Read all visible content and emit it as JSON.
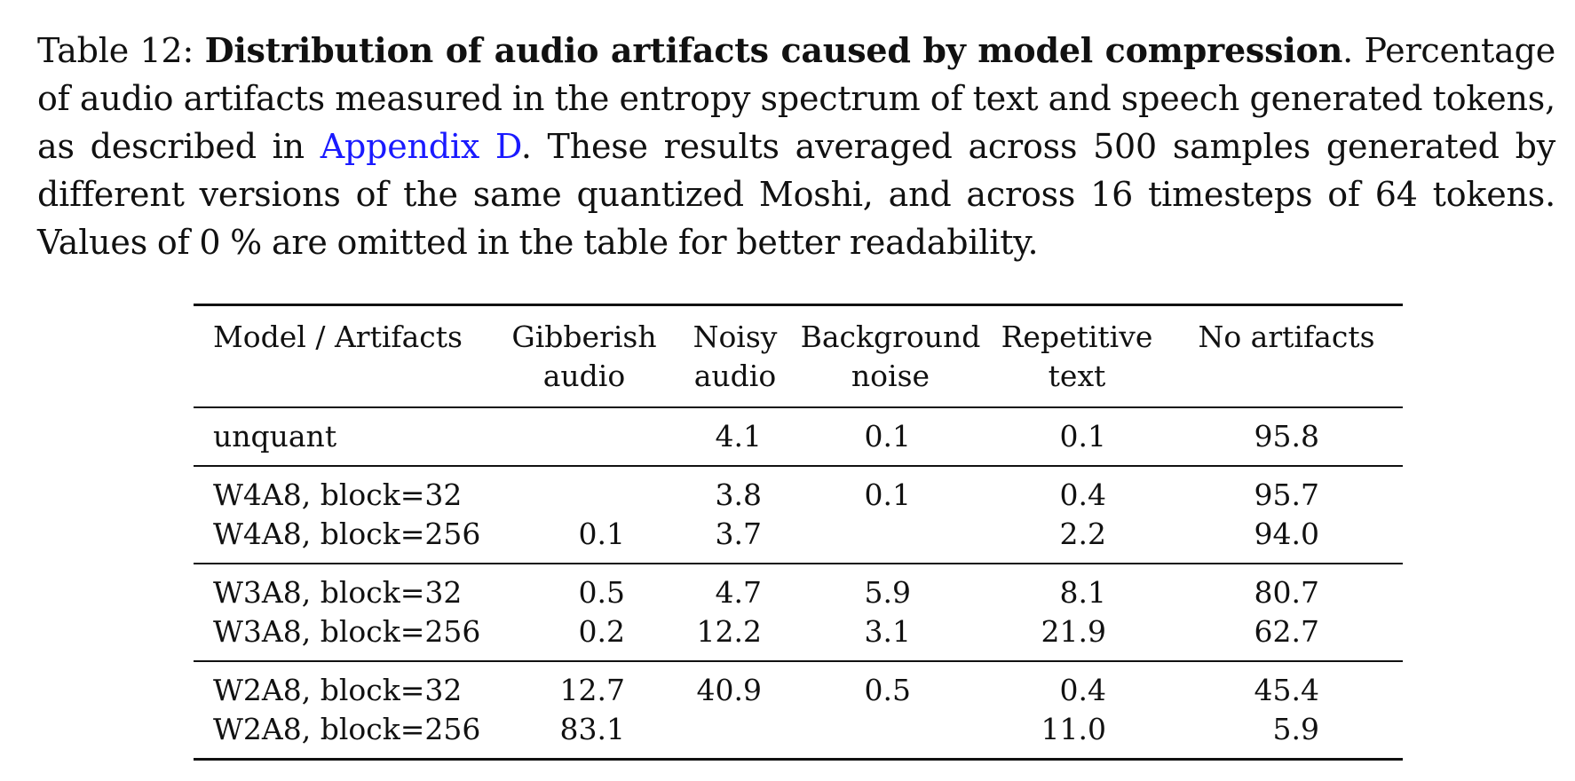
{
  "caption": {
    "label": "Table 12:",
    "title": "Distribution of audio artifacts caused by model compression",
    "text_1": ". Percentage of audio artifacts measured in the entropy spectrum of text and speech generated tokens, as described in ",
    "link": "Appendix D",
    "text_2": ". These results averaged across 500 samples generated by different versions of the same quantized Moshi, and across 16 timesteps of 64 tokens. Values of 0 % are omitted in the table for better readability."
  },
  "table": {
    "headers": [
      [
        "Model / Artifacts",
        ""
      ],
      [
        "Gibberish",
        "audio"
      ],
      [
        "Noisy",
        "audio"
      ],
      [
        "Background",
        "noise"
      ],
      [
        "Repetitive",
        "text"
      ],
      [
        "No artifacts",
        ""
      ]
    ],
    "groups": [
      [
        [
          "unquant",
          "",
          "4.1",
          "0.1",
          "0.1",
          "95.8"
        ]
      ],
      [
        [
          "W4A8, block=32",
          "",
          "3.8",
          "0.1",
          "0.4",
          "95.7"
        ],
        [
          "W4A8, block=256",
          "0.1",
          "3.7",
          "",
          "2.2",
          "94.0"
        ]
      ],
      [
        [
          "W3A8, block=32",
          "0.5",
          "4.7",
          "5.9",
          "8.1",
          "80.7"
        ],
        [
          "W3A8, block=256",
          "0.2",
          "12.2",
          "3.1",
          "21.9",
          "62.7"
        ]
      ],
      [
        [
          "W2A8, block=32",
          "12.7",
          "40.9",
          "0.5",
          "0.4",
          "45.4"
        ],
        [
          "W2A8, block=256",
          "83.1",
          "",
          "",
          "11.0",
          "5.9"
        ]
      ]
    ]
  }
}
